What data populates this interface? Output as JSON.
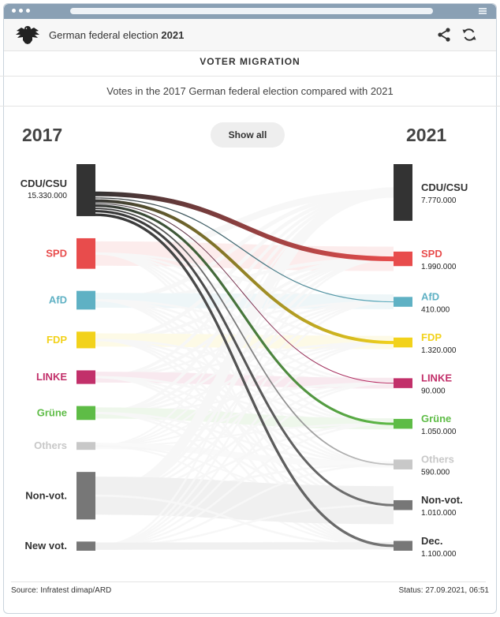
{
  "app": {
    "title_prefix": "German federal election",
    "title_year": "2021"
  },
  "section_title": "VOTER MIGRATION",
  "subtitle": "Votes in the 2017 German federal election compared with 2021",
  "show_all_label": "Show all",
  "footer": {
    "source": "Source: Infratest dimap/ARD",
    "status": "Status: 27.09.2021, 06:51"
  },
  "chart_data": {
    "type": "sankey",
    "left_year": "2017",
    "right_year": "2021",
    "left_nodes": [
      {
        "label": "CDU/CSU",
        "value_label": "15.330.000",
        "color": "#333333",
        "weight": 15330000
      },
      {
        "label": "SPD",
        "value_label": "",
        "color": "#e84c4c",
        "weight": 9000000
      },
      {
        "label": "AfD",
        "value_label": "",
        "color": "#5fb1c4",
        "weight": 5500000
      },
      {
        "label": "FDP",
        "value_label": "",
        "color": "#f2d21b",
        "weight": 4900000
      },
      {
        "label": "LINKE",
        "value_label": "",
        "color": "#c2306a",
        "weight": 4000000
      },
      {
        "label": "Grüne",
        "value_label": "",
        "color": "#5ebc46",
        "weight": 4100000
      },
      {
        "label": "Others",
        "value_label": "",
        "color": "#c8c8c8",
        "weight": 2300000
      },
      {
        "label": "Non-vot.",
        "value_label": "",
        "color": "#777777",
        "weight": 14000000
      },
      {
        "label": "New vot.",
        "value_label": "",
        "color": "#777777",
        "weight": 2700000
      }
    ],
    "right_nodes": [
      {
        "label": "CDU/CSU",
        "value_label": "7.770.000",
        "color": "#333333",
        "value": 7770000
      },
      {
        "label": "SPD",
        "value_label": "1.990.000",
        "color": "#e84c4c",
        "value": 1990000
      },
      {
        "label": "AfD",
        "value_label": "410.000",
        "color": "#5fb1c4",
        "value": 410000
      },
      {
        "label": "FDP",
        "value_label": "1.320.000",
        "color": "#f2d21b",
        "value": 1320000
      },
      {
        "label": "LINKE",
        "value_label": "90.000",
        "color": "#c2306a",
        "value": 90000
      },
      {
        "label": "Grüne",
        "value_label": "1.050.000",
        "color": "#5ebc46",
        "value": 1050000
      },
      {
        "label": "Others",
        "value_label": "590.000",
        "color": "#c8c8c8",
        "value": 590000
      },
      {
        "label": "Non-vot.",
        "value_label": "1.010.000",
        "color": "#777777",
        "value": 1010000
      },
      {
        "label": "Dec.",
        "value_label": "1.100.000",
        "color": "#777777",
        "value": 1100000
      }
    ]
  }
}
